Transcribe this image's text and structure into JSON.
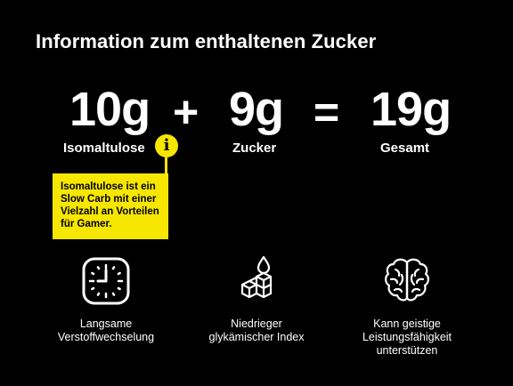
{
  "title": "Information zum enthaltenen Zucker",
  "equation": {
    "term1": {
      "value": "10g",
      "label": "Isomaltulose"
    },
    "plus": "+",
    "term2": {
      "value": "9g",
      "label": "Zucker"
    },
    "equals": "=",
    "term3": {
      "value": "19g",
      "label": "Gesamt"
    }
  },
  "info": {
    "icon": "info-icon",
    "glyph": "i",
    "tooltip": "Isomaltulose ist ein Slow Carb mit einer Vielzahl an Vorteilen für Gamer."
  },
  "features": [
    {
      "icon": "clock-icon",
      "text_line1": "Langsame",
      "text_line2": "Verstoffwechselung",
      "text_line3": ""
    },
    {
      "icon": "sugar-cubes-icon",
      "text_line1": "Niedrieger",
      "text_line2": "glykämischer Index",
      "text_line3": ""
    },
    {
      "icon": "brain-icon",
      "text_line1": "Kann geistige",
      "text_line2": "Leistungsfähigkeit",
      "text_line3": "unterstützen"
    }
  ],
  "colors": {
    "background": "#000000",
    "text": "#ffffff",
    "accent": "#f7e600"
  }
}
